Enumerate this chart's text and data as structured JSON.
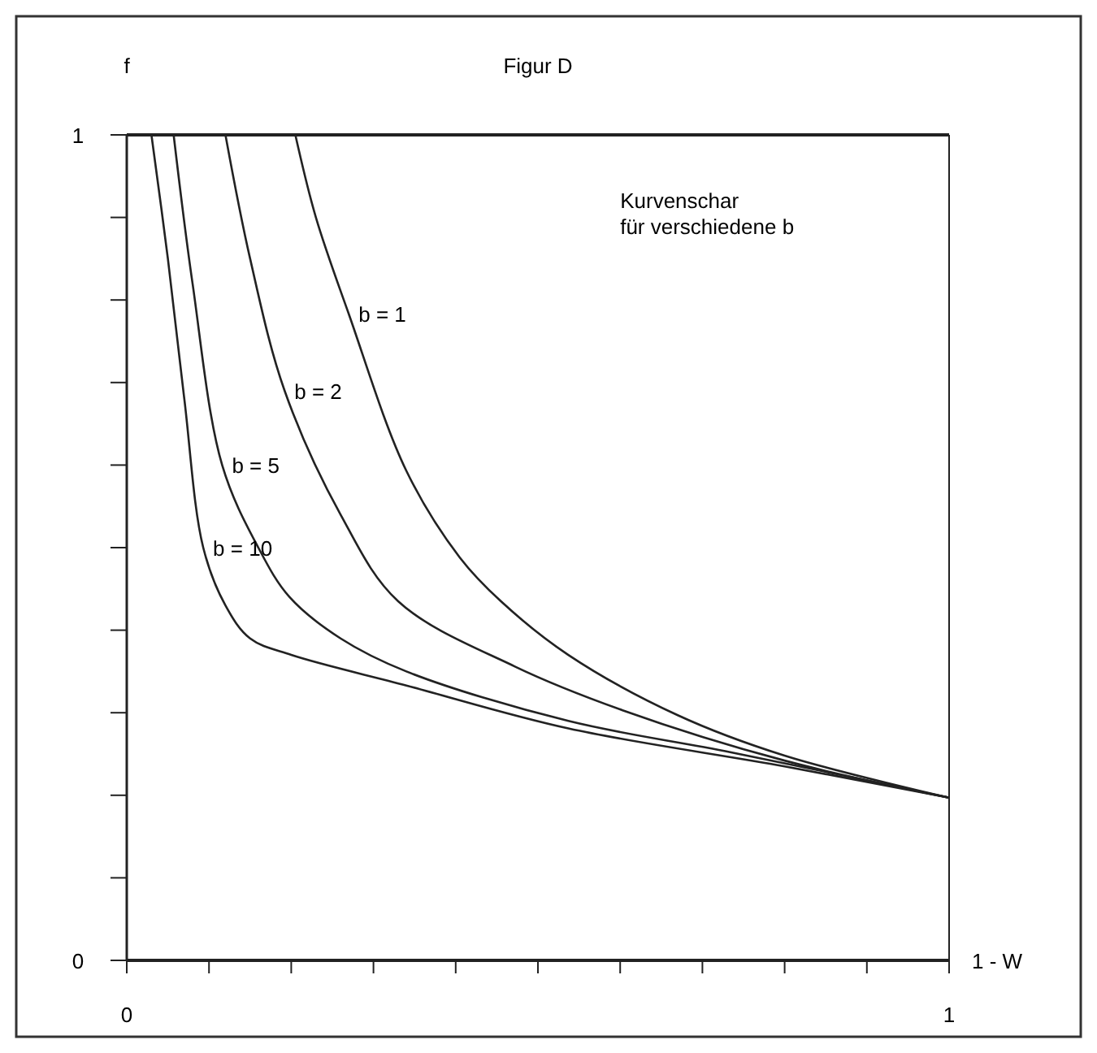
{
  "chart_data": {
    "type": "line",
    "title": "Figur D",
    "xlabel": "1 - W",
    "ylabel": "f",
    "xlim": [
      0,
      1
    ],
    "ylim": [
      0,
      1
    ],
    "xticks": [
      0,
      {
        "value": 0.1,
        "label": null
      },
      {
        "value": 0.2,
        "label": null
      },
      {
        "value": 0.3,
        "label": null
      },
      {
        "value": 0.4,
        "label": null
      },
      {
        "value": 0.5,
        "label": null
      },
      {
        "value": 0.6,
        "label": null
      },
      {
        "value": 0.7,
        "label": null
      },
      {
        "value": 0.8,
        "label": null
      },
      {
        "value": 0.9,
        "label": null
      },
      1
    ],
    "yticks": [
      0,
      {
        "value": 0.1,
        "label": null
      },
      {
        "value": 0.2,
        "label": null
      },
      {
        "value": 0.3,
        "label": null
      },
      {
        "value": 0.4,
        "label": null
      },
      {
        "value": 0.5,
        "label": null
      },
      {
        "value": 0.6,
        "label": null
      },
      {
        "value": 0.7,
        "label": null
      },
      {
        "value": 0.8,
        "label": null
      },
      {
        "value": 0.9,
        "label": null
      },
      1
    ],
    "line_style": "solid",
    "series": [
      {
        "color": "#222222",
        "x": [
          0.205,
          0.23,
          0.27,
          0.34,
          0.405,
          0.455,
          0.537,
          0.67,
          0.8,
          1
        ],
        "values": [
          1,
          0.9,
          0.783,
          0.593,
          0.488,
          0.435,
          0.37,
          0.297,
          0.248,
          0.197
        ]
      },
      {
        "color": "#222222",
        "x": [
          0.12,
          0.15,
          0.192,
          0.26,
          0.33,
          0.472,
          0.603,
          0.8,
          1
        ],
        "values": [
          1,
          0.85,
          0.69,
          0.54,
          0.435,
          0.356,
          0.303,
          0.242,
          0.197
        ]
      },
      {
        "color": "#222222",
        "x": [
          0.057,
          0.08,
          0.116,
          0.16,
          0.198,
          0.26,
          0.34,
          0.537,
          0.735,
          1
        ],
        "values": [
          1,
          0.82,
          0.6,
          0.5,
          0.44,
          0.39,
          0.35,
          0.29,
          0.252,
          0.197
        ]
      },
      {
        "color": "#222222",
        "x": [
          0.03,
          0.05,
          0.07,
          0.093,
          0.12,
          0.15,
          0.2,
          0.34,
          0.537,
          0.8,
          1
        ],
        "values": [
          1,
          0.85,
          0.68,
          0.5,
          0.43,
          0.39,
          0.37,
          0.333,
          0.281,
          0.235,
          0.197
        ]
      }
    ],
    "annotations": [
      {
        "text": "b = 1",
        "x": 0.27,
        "y": 0.783
      },
      {
        "text": "b = 2",
        "x": 0.192,
        "y": 0.69
      },
      {
        "text": "b = 5",
        "x": 0.116,
        "y": 0.6
      },
      {
        "text": "b = 10",
        "x": 0.093,
        "y": 0.5
      },
      "Kurvenschar\nfür verschiedene b"
    ]
  }
}
